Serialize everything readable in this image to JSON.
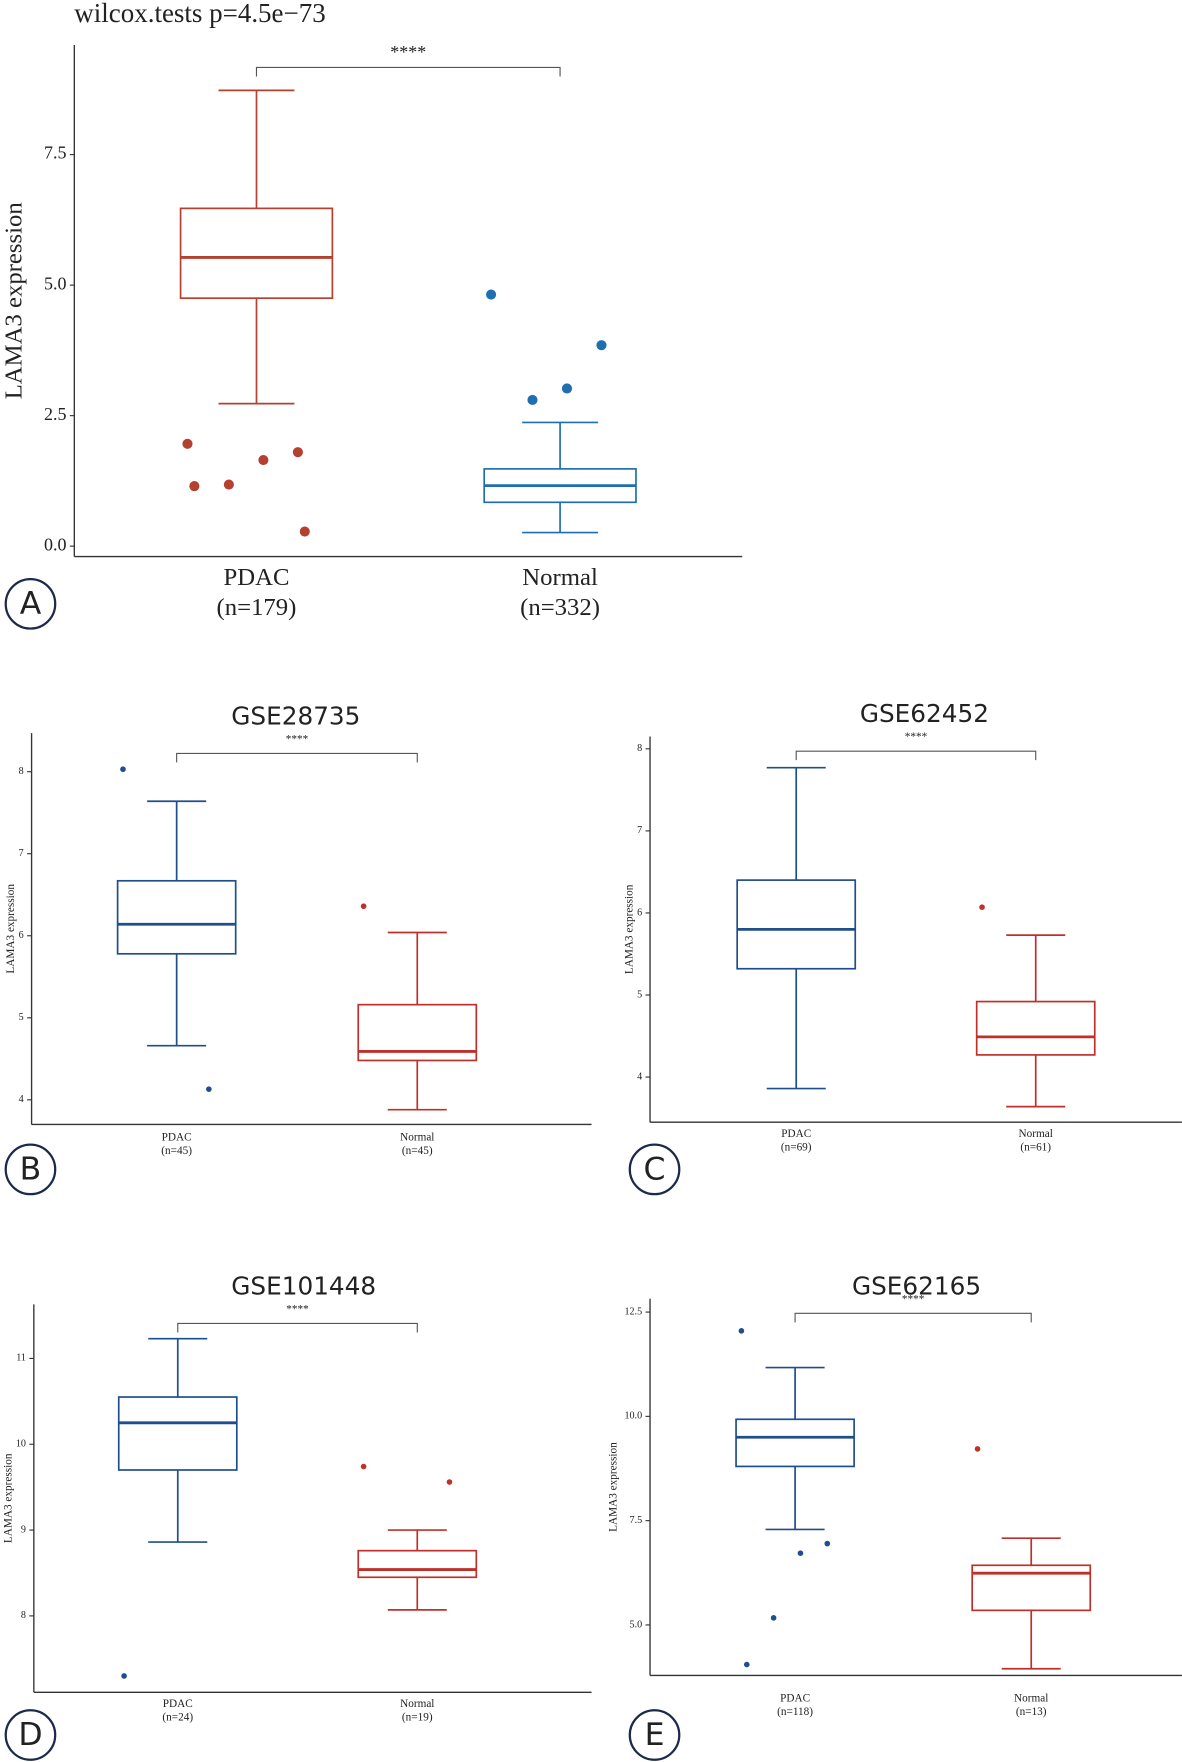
{
  "chart_data": [
    {
      "type": "box",
      "title": "wilcox.tests p=4.5e−73",
      "y_label": "LAMA3 expression",
      "panel_label": "A",
      "significance": "****",
      "categories": [
        "PDAC",
        "Normal"
      ],
      "category_notes": [
        "(n=179)",
        "(n=332)"
      ],
      "ylim": [
        -0.2,
        9.6
      ],
      "yticks": [
        {
          "value": 0,
          "label": "0.0"
        },
        {
          "value": 2.5,
          "label": "2.5"
        },
        {
          "value": 5,
          "label": "5.0"
        },
        {
          "value": 7.5,
          "label": "7.5"
        }
      ],
      "groups": [
        {
          "color": "#b5402f",
          "min": 2.73,
          "q1": 4.75,
          "median": 5.53,
          "q3": 6.47,
          "max": 8.73,
          "outliers": [
            1.96,
            1.8,
            1.65,
            1.18,
            1.15,
            0.28
          ]
        },
        {
          "color": "#1f6fb0",
          "min": 0.26,
          "q1": 0.84,
          "median": 1.16,
          "q3": 1.48,
          "max": 2.37,
          "outliers": [
            4.82,
            3.85,
            3.02,
            2.8
          ]
        }
      ]
    },
    {
      "type": "box",
      "title": "GSE28735",
      "y_label": "LAMA3 expression",
      "panel_label": "B",
      "significance": "****",
      "categories": [
        "PDAC",
        "Normal"
      ],
      "category_notes": [
        "(n=45)",
        "(n=45)"
      ],
      "ylim": [
        3.7,
        8.47
      ],
      "yticks": [
        4,
        5,
        6,
        7,
        8
      ],
      "groups": [
        {
          "color": "#1f4e8c",
          "min": 4.66,
          "q1": 5.78,
          "median": 6.14,
          "q3": 6.67,
          "max": 7.64,
          "outliers": [
            8.03,
            4.13
          ]
        },
        {
          "color": "#c0302a",
          "min": 3.88,
          "q1": 4.48,
          "median": 4.59,
          "q3": 5.16,
          "max": 6.04,
          "outliers": [
            6.36
          ]
        }
      ]
    },
    {
      "type": "box",
      "title": "GSE62452",
      "y_label": "LAMA3 expression",
      "panel_label": "C",
      "significance": "****",
      "categories": [
        "PDAC",
        "Normal"
      ],
      "category_notes": [
        "(n=69)",
        "(n=61)"
      ],
      "ylim": [
        3.45,
        8.15
      ],
      "yticks": [
        4,
        5,
        6,
        7,
        8
      ],
      "groups": [
        {
          "color": "#1f4e8c",
          "min": 3.86,
          "q1": 5.32,
          "median": 5.8,
          "q3": 6.4,
          "max": 7.77,
          "outliers": []
        },
        {
          "color": "#c0302a",
          "min": 3.64,
          "q1": 4.27,
          "median": 4.49,
          "q3": 4.92,
          "max": 5.73,
          "outliers": [
            6.07
          ]
        }
      ]
    },
    {
      "type": "box",
      "title": "GSE101448",
      "y_label": "LAMA3 expression",
      "panel_label": "D",
      "significance": "****",
      "categories": [
        "PDAC",
        "Normal"
      ],
      "category_notes": [
        "(n=24)",
        "(n=19)"
      ],
      "ylim": [
        7.11,
        11.63
      ],
      "yticks": [
        8,
        9,
        10,
        11
      ],
      "groups": [
        {
          "color": "#1f4e8c",
          "min": 8.86,
          "q1": 9.7,
          "median": 10.25,
          "q3": 10.55,
          "max": 11.23,
          "outliers": [
            7.3
          ]
        },
        {
          "color": "#c0302a",
          "min": 8.07,
          "q1": 8.45,
          "median": 8.54,
          "q3": 8.76,
          "max": 9.0,
          "outliers": [
            9.74,
            9.56
          ]
        }
      ]
    },
    {
      "type": "box",
      "title": "GSE62165",
      "y_label": "LAMA3 expression",
      "panel_label": "E",
      "significance": "****",
      "categories": [
        "PDAC",
        "Normal"
      ],
      "category_notes": [
        "(n=118)",
        "(n=13)"
      ],
      "ylim": [
        3.79,
        12.82
      ],
      "yticks": [
        {
          "value": 5,
          "label": "5.0"
        },
        {
          "value": 7.5,
          "label": "7.5"
        },
        {
          "value": 10,
          "label": "10.0"
        },
        {
          "value": 12.5,
          "label": "12.5"
        }
      ],
      "groups": [
        {
          "color": "#1f4e8c",
          "min": 7.29,
          "q1": 8.8,
          "median": 9.5,
          "q3": 9.93,
          "max": 11.17,
          "outliers": [
            12.05,
            6.95,
            6.72,
            5.17,
            4.05
          ]
        },
        {
          "color": "#c0302a",
          "min": 3.95,
          "q1": 5.35,
          "median": 6.24,
          "q3": 6.43,
          "max": 7.08,
          "outliers": [
            9.22
          ]
        }
      ]
    }
  ]
}
